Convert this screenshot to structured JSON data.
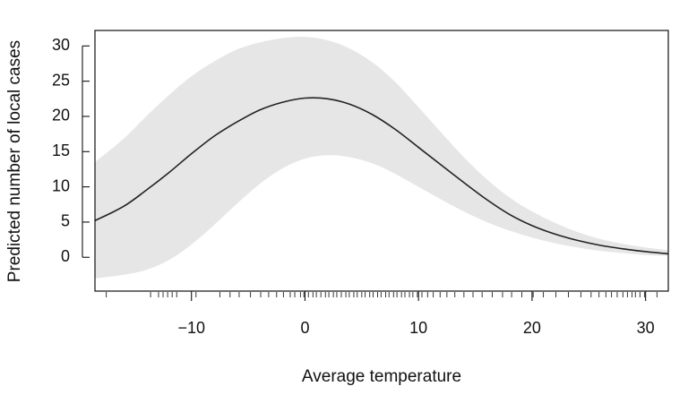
{
  "chart_data": {
    "type": "line",
    "title": "",
    "xlabel": "Average temperature",
    "ylabel": "Predicted number of local cases",
    "xlim": [
      -18.5,
      32
    ],
    "ylim": [
      -4.8,
      32.2
    ],
    "x_ticks": [
      -10,
      0,
      10,
      20,
      30
    ],
    "x_tick_labels": [
      "−10",
      "0",
      "10",
      "20",
      "30"
    ],
    "y_ticks": [
      0,
      5,
      10,
      15,
      20,
      25,
      30
    ],
    "y_tick_labels": [
      "0",
      "5",
      "10",
      "15",
      "20",
      "25",
      "30"
    ],
    "grid": false,
    "legend": "none",
    "line_color": "#222222",
    "band_color": "#e6e6e6",
    "series": [
      {
        "kind": "line",
        "x": [
          -18.5,
          -16,
          -14,
          -12,
          -10,
          -8,
          -6,
          -4,
          -2,
          0,
          2,
          4,
          6,
          8,
          10,
          12,
          14,
          16,
          18,
          20,
          22,
          24,
          26,
          28,
          30,
          32
        ],
        "y": [
          5.2,
          7.2,
          9.5,
          12.0,
          14.7,
          17.2,
          19.2,
          20.9,
          22.0,
          22.6,
          22.5,
          21.7,
          20.2,
          18.1,
          15.6,
          13.1,
          10.6,
          8.2,
          6.1,
          4.5,
          3.3,
          2.4,
          1.7,
          1.2,
          0.8,
          0.5
        ]
      },
      {
        "kind": "band_upper",
        "x": [
          -18.5,
          -16,
          -14,
          -12,
          -10,
          -8,
          -6,
          -4,
          -2,
          0,
          2,
          4,
          6,
          8,
          10,
          12,
          14,
          16,
          18,
          20,
          22,
          24,
          26,
          28,
          30,
          32
        ],
        "y": [
          13.5,
          16.8,
          20.0,
          23.0,
          25.7,
          27.8,
          29.5,
          30.5,
          31.1,
          31.3,
          30.8,
          29.6,
          27.6,
          24.8,
          21.3,
          17.7,
          14.2,
          11.1,
          8.5,
          6.5,
          4.9,
          3.6,
          2.6,
          1.9,
          1.4,
          1.0
        ]
      },
      {
        "kind": "band_lower",
        "x": [
          -18.5,
          -16,
          -14,
          -12,
          -10,
          -8,
          -6,
          -4,
          -2,
          0,
          2,
          4,
          6,
          8,
          10,
          12,
          14,
          16,
          18,
          20,
          22,
          24,
          26,
          28,
          30,
          32
        ],
        "y": [
          -3.0,
          -2.5,
          -1.8,
          -0.4,
          1.8,
          4.6,
          7.6,
          10.4,
          12.6,
          14.0,
          14.5,
          14.2,
          13.3,
          11.8,
          10.0,
          8.2,
          6.5,
          5.0,
          3.8,
          2.8,
          2.0,
          1.4,
          0.9,
          0.6,
          0.3,
          0.2
        ]
      }
    ],
    "rug_x": [
      -17.5,
      -13.6,
      -12.9,
      -12.5,
      -12.1,
      -11.7,
      -11.3,
      -9.6,
      -7.5,
      -6.6,
      -5.8,
      -4.8,
      -3.9,
      -3.2,
      -2.5,
      -1.9,
      -1.3,
      -0.9,
      -0.4,
      -0.1,
      0.3,
      0.7,
      1.0,
      1.4,
      1.8,
      2.1,
      2.5,
      2.8,
      3.2,
      3.6,
      3.9,
      4.3,
      4.6,
      5.0,
      5.3,
      5.7,
      6.0,
      6.4,
      6.7,
      7.1,
      7.4,
      7.8,
      8.1,
      8.5,
      8.8,
      9.2,
      9.5,
      9.9,
      10.3,
      10.8,
      11.3,
      11.9,
      12.5,
      13.2,
      14.0,
      14.8,
      15.6,
      16.5,
      17.4,
      18.2,
      19.1,
      20.1,
      21.0,
      22.1,
      23.2,
      24.3,
      25.2,
      25.9,
      26.5,
      27.0,
      27.5,
      28.0,
      28.4,
      28.8,
      29.1,
      29.5,
      29.9,
      31.0
    ]
  }
}
